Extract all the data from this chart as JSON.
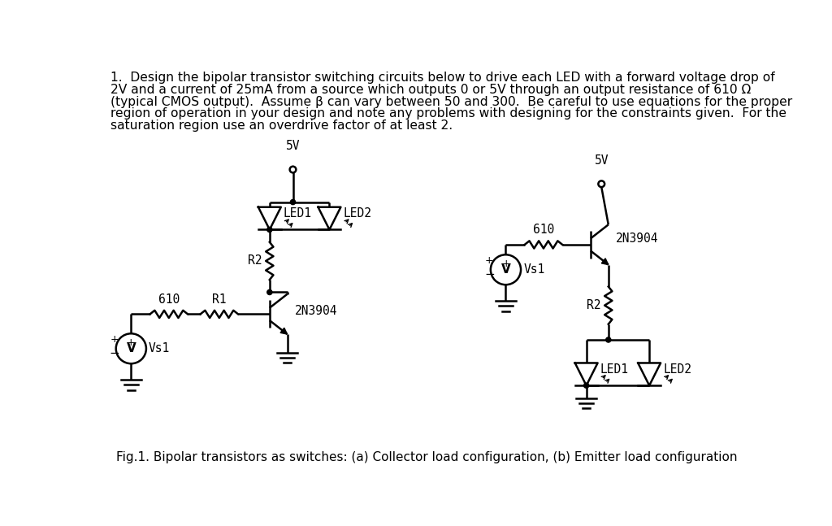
{
  "bg_color": "#ffffff",
  "text_color": "#000000",
  "font_size_body": 11.2,
  "font_size_caption": 11.0,
  "font_size_label": 10.5,
  "caption": "Fig.1. Bipolar transistors as switches: (a) Collector load configuration, (b) Emitter load configuration",
  "title_lines": [
    "1.  Design the bipolar transistor switching circuits below to drive each LED with a forward voltage drop of",
    "2V and a current of 25mA from a source which outputs 0 or 5V through an output resistance of 610 Ω",
    "(typical CMOS output).  Assume β can vary between 50 and 300.  Be careful to use equations for the proper",
    "region of operation in your design and note any problems with designing for the constraints given.  For the",
    "saturation region use an overdrive factor of at least 2."
  ]
}
